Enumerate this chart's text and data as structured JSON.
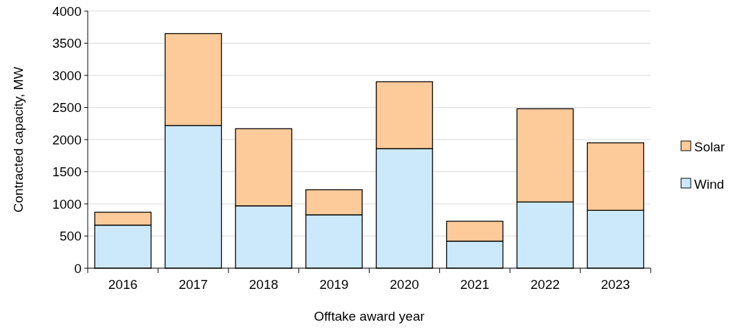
{
  "chart_data": {
    "type": "bar",
    "stacked": true,
    "xlabel": "Offtake award year",
    "ylabel": "Contracted capacity, MW",
    "categories": [
      "2016",
      "2017",
      "2018",
      "2019",
      "2020",
      "2021",
      "2022",
      "2023"
    ],
    "series": [
      {
        "name": "Wind",
        "color": "#cce9fb",
        "values": [
          670,
          2220,
          970,
          830,
          1860,
          420,
          1030,
          900
        ]
      },
      {
        "name": "Solar",
        "color": "#fdca99",
        "values": [
          200,
          1430,
          1200,
          390,
          1040,
          310,
          1450,
          1050
        ]
      }
    ],
    "ylim": [
      0,
      4000
    ],
    "yticks": [
      0,
      500,
      1000,
      1500,
      2000,
      2500,
      3000,
      3500,
      4000
    ],
    "grid": "y",
    "legend": "right"
  }
}
